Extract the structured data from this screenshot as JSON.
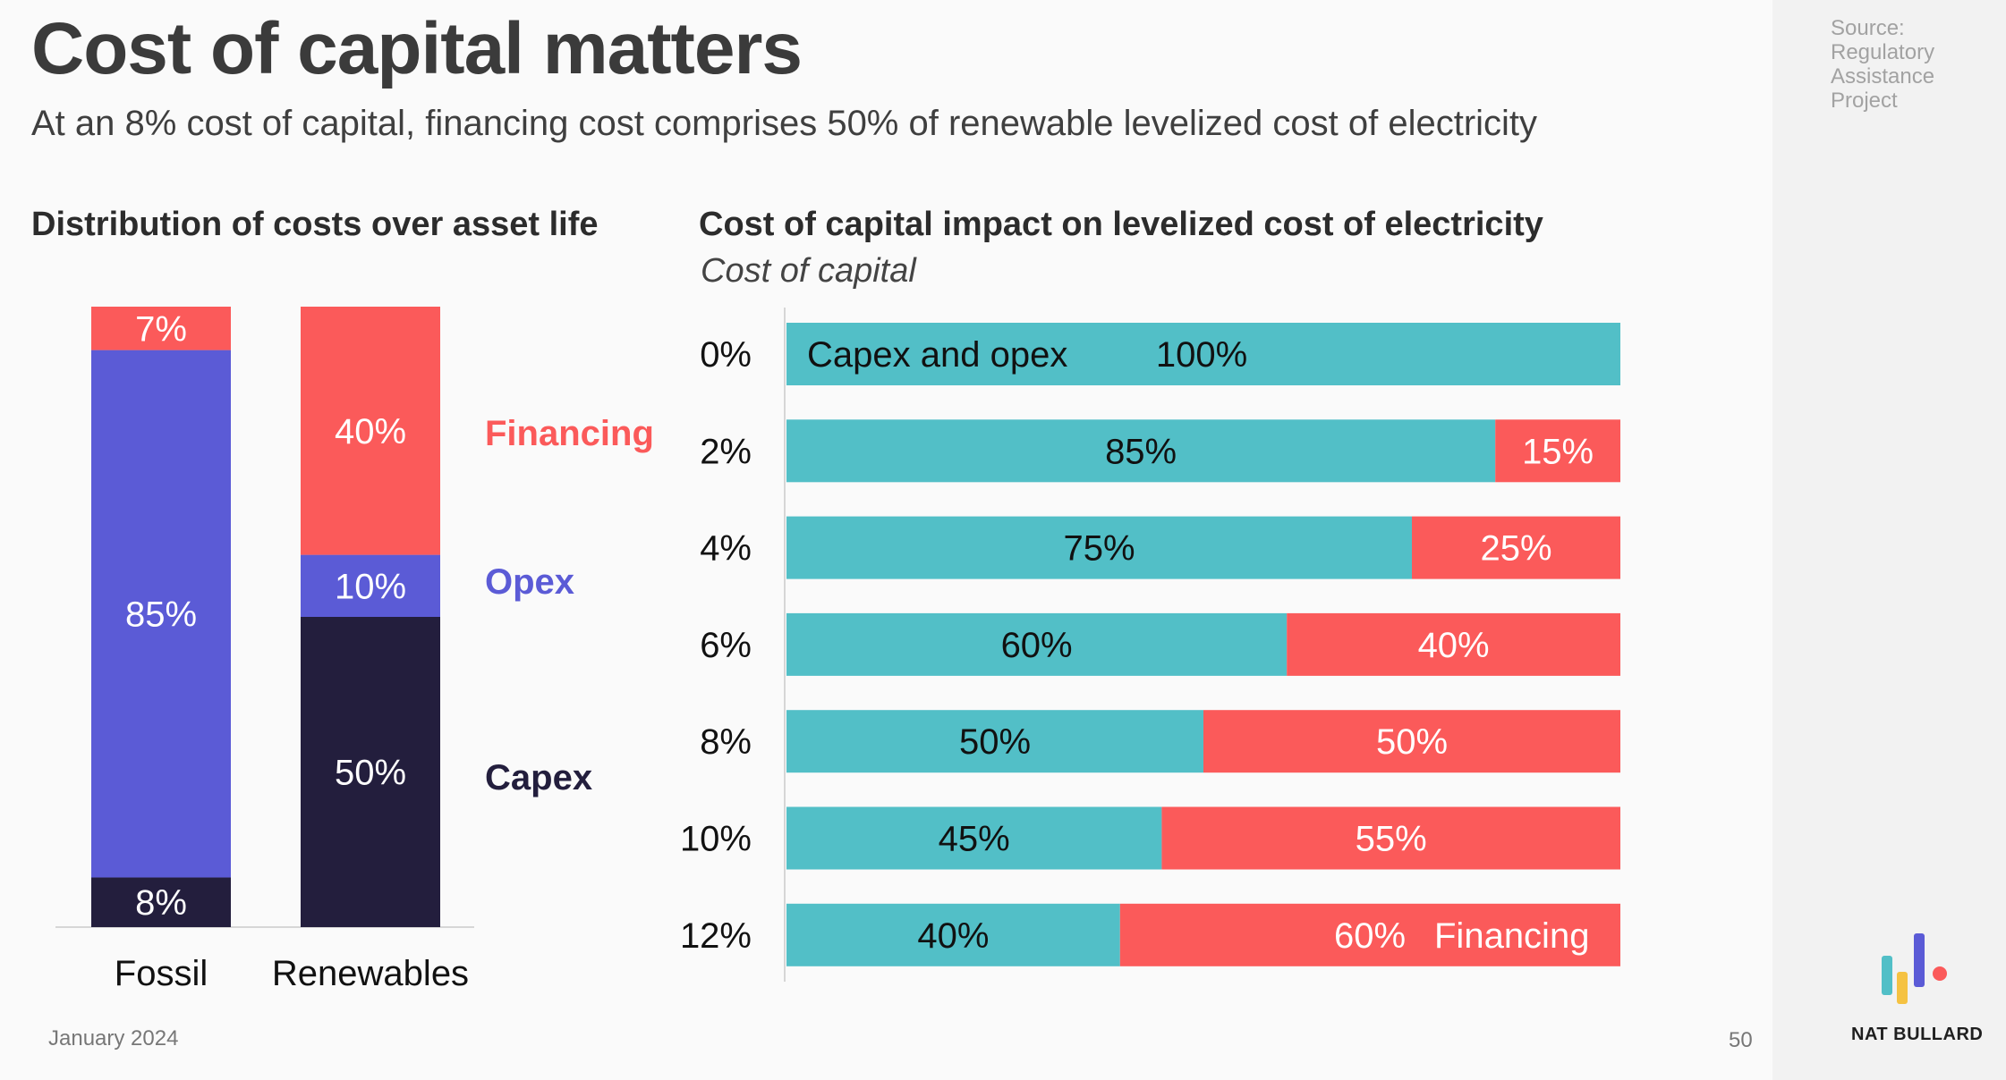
{
  "title": "Cost of capital matters",
  "subtitle": "At an 8% cost of capital, financing cost comprises 50% of renewable levelized cost of electricity",
  "source": "Source: Regulatory Assistance Project",
  "footer": {
    "date": "January 2024",
    "page": "50",
    "brand": "NAT BULLARD"
  },
  "colors": {
    "financing": "#fb5a5a",
    "opex": "#5b5bd6",
    "capex": "#231e3d",
    "teal": "#52bfc7"
  },
  "chart_data": [
    {
      "type": "bar",
      "stacked": true,
      "title": "Distribution of costs over asset life",
      "categories": [
        "Fossil",
        "Renewables"
      ],
      "series": [
        {
          "name": "Capex",
          "values": [
            8,
            50
          ],
          "labels": [
            "8%",
            "50%"
          ],
          "color": "#231e3d"
        },
        {
          "name": "Opex",
          "values": [
            85,
            10
          ],
          "labels": [
            "85%",
            "10%"
          ],
          "color": "#5b5bd6"
        },
        {
          "name": "Financing",
          "values": [
            7,
            40
          ],
          "labels": [
            "7%",
            "40%"
          ],
          "color": "#fb5a5a"
        }
      ],
      "ylim": [
        0,
        100
      ],
      "legend": "right"
    },
    {
      "type": "bar",
      "orientation": "horizontal",
      "stacked": true,
      "title": "Cost of capital impact on levelized cost of electricity",
      "ylabel": "Cost of capital",
      "categories": [
        "0%",
        "2%",
        "4%",
        "6%",
        "8%",
        "10%",
        "12%"
      ],
      "series": [
        {
          "name": "Capex and opex",
          "values": [
            100,
            85,
            75,
            60,
            50,
            45,
            40
          ],
          "labels": [
            "100%",
            "85%",
            "75%",
            "60%",
            "50%",
            "45%",
            "40%"
          ],
          "color": "#52bfc7"
        },
        {
          "name": "Financing",
          "values": [
            0,
            15,
            25,
            40,
            50,
            55,
            60
          ],
          "labels": [
            "",
            "15%",
            "25%",
            "40%",
            "50%",
            "55%",
            "60%"
          ],
          "color": "#fb5a5a"
        }
      ],
      "xlim": [
        0,
        100
      ]
    }
  ]
}
